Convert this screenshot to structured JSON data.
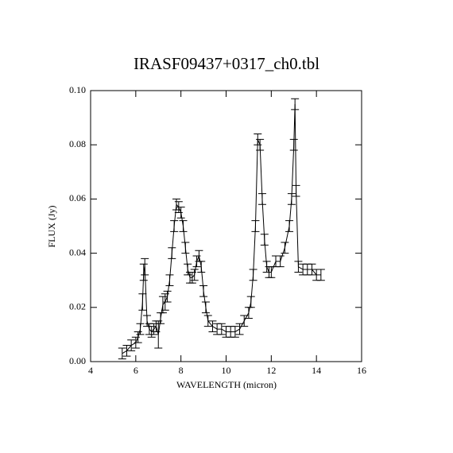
{
  "chart_data": {
    "type": "line",
    "title": "IRASF09437+0317_ch0.tbl",
    "x_label": "WAVELENGTH (micron)",
    "y_label": "FLUX (Jy)",
    "xlim": [
      4,
      16
    ],
    "xticks": [
      4,
      6,
      8,
      10,
      12,
      14,
      16
    ],
    "ylim": [
      0,
      0.1
    ],
    "yticks": [
      {
        "value": 0,
        "label": "0.00"
      },
      0.02,
      0.04,
      0.06,
      0.08,
      {
        "value": 0.1,
        "label": "0.10"
      }
    ],
    "color": "#000000",
    "x": [
      5.4,
      5.6,
      5.8,
      6.0,
      6.1,
      6.2,
      6.3,
      6.35,
      6.4,
      6.5,
      6.6,
      6.7,
      6.8,
      6.9,
      7.0,
      7.1,
      7.2,
      7.3,
      7.4,
      7.5,
      7.6,
      7.7,
      7.8,
      7.9,
      8.0,
      8.1,
      8.2,
      8.3,
      8.4,
      8.5,
      8.6,
      8.7,
      8.8,
      8.9,
      9.0,
      9.1,
      9.2,
      9.4,
      9.6,
      9.8,
      10.0,
      10.2,
      10.4,
      10.6,
      10.8,
      11.0,
      11.1,
      11.2,
      11.3,
      11.4,
      11.5,
      11.6,
      11.7,
      11.8,
      11.9,
      12.0,
      12.2,
      12.4,
      12.6,
      12.8,
      12.9,
      13.0,
      13.05,
      13.1,
      13.2,
      13.4,
      13.6,
      13.8,
      14.0,
      14.2
    ],
    "values": [
      0.003,
      0.004,
      0.006,
      0.007,
      0.009,
      0.012,
      0.022,
      0.033,
      0.035,
      0.015,
      0.012,
      0.011,
      0.012,
      0.013,
      0.01,
      0.016,
      0.021,
      0.022,
      0.024,
      0.03,
      0.04,
      0.05,
      0.058,
      0.057,
      0.055,
      0.05,
      0.042,
      0.034,
      0.031,
      0.031,
      0.032,
      0.037,
      0.039,
      0.035,
      0.026,
      0.02,
      0.015,
      0.013,
      0.012,
      0.012,
      0.011,
      0.011,
      0.011,
      0.012,
      0.015,
      0.018,
      0.022,
      0.032,
      0.05,
      0.082,
      0.08,
      0.06,
      0.045,
      0.035,
      0.033,
      0.033,
      0.037,
      0.037,
      0.042,
      0.05,
      0.06,
      0.08,
      0.095,
      0.063,
      0.035,
      0.034,
      0.034,
      0.034,
      0.032,
      0.032
    ],
    "errors": [
      0.002,
      0.002,
      0.002,
      0.002,
      0.002,
      0.002,
      0.003,
      0.003,
      0.003,
      0.002,
      0.002,
      0.002,
      0.002,
      0.002,
      0.005,
      0.002,
      0.003,
      0.003,
      0.002,
      0.002,
      0.002,
      0.002,
      0.002,
      0.002,
      0.002,
      0.002,
      0.002,
      0.002,
      0.002,
      0.002,
      0.002,
      0.002,
      0.002,
      0.002,
      0.002,
      0.002,
      0.002,
      0.002,
      0.002,
      0.002,
      0.002,
      0.002,
      0.002,
      0.002,
      0.002,
      0.002,
      0.002,
      0.002,
      0.002,
      0.002,
      0.002,
      0.002,
      0.002,
      0.002,
      0.002,
      0.002,
      0.002,
      0.002,
      0.002,
      0.002,
      0.002,
      0.002,
      0.002,
      0.002,
      0.002,
      0.002,
      0.002,
      0.002,
      0.002,
      0.002
    ]
  }
}
